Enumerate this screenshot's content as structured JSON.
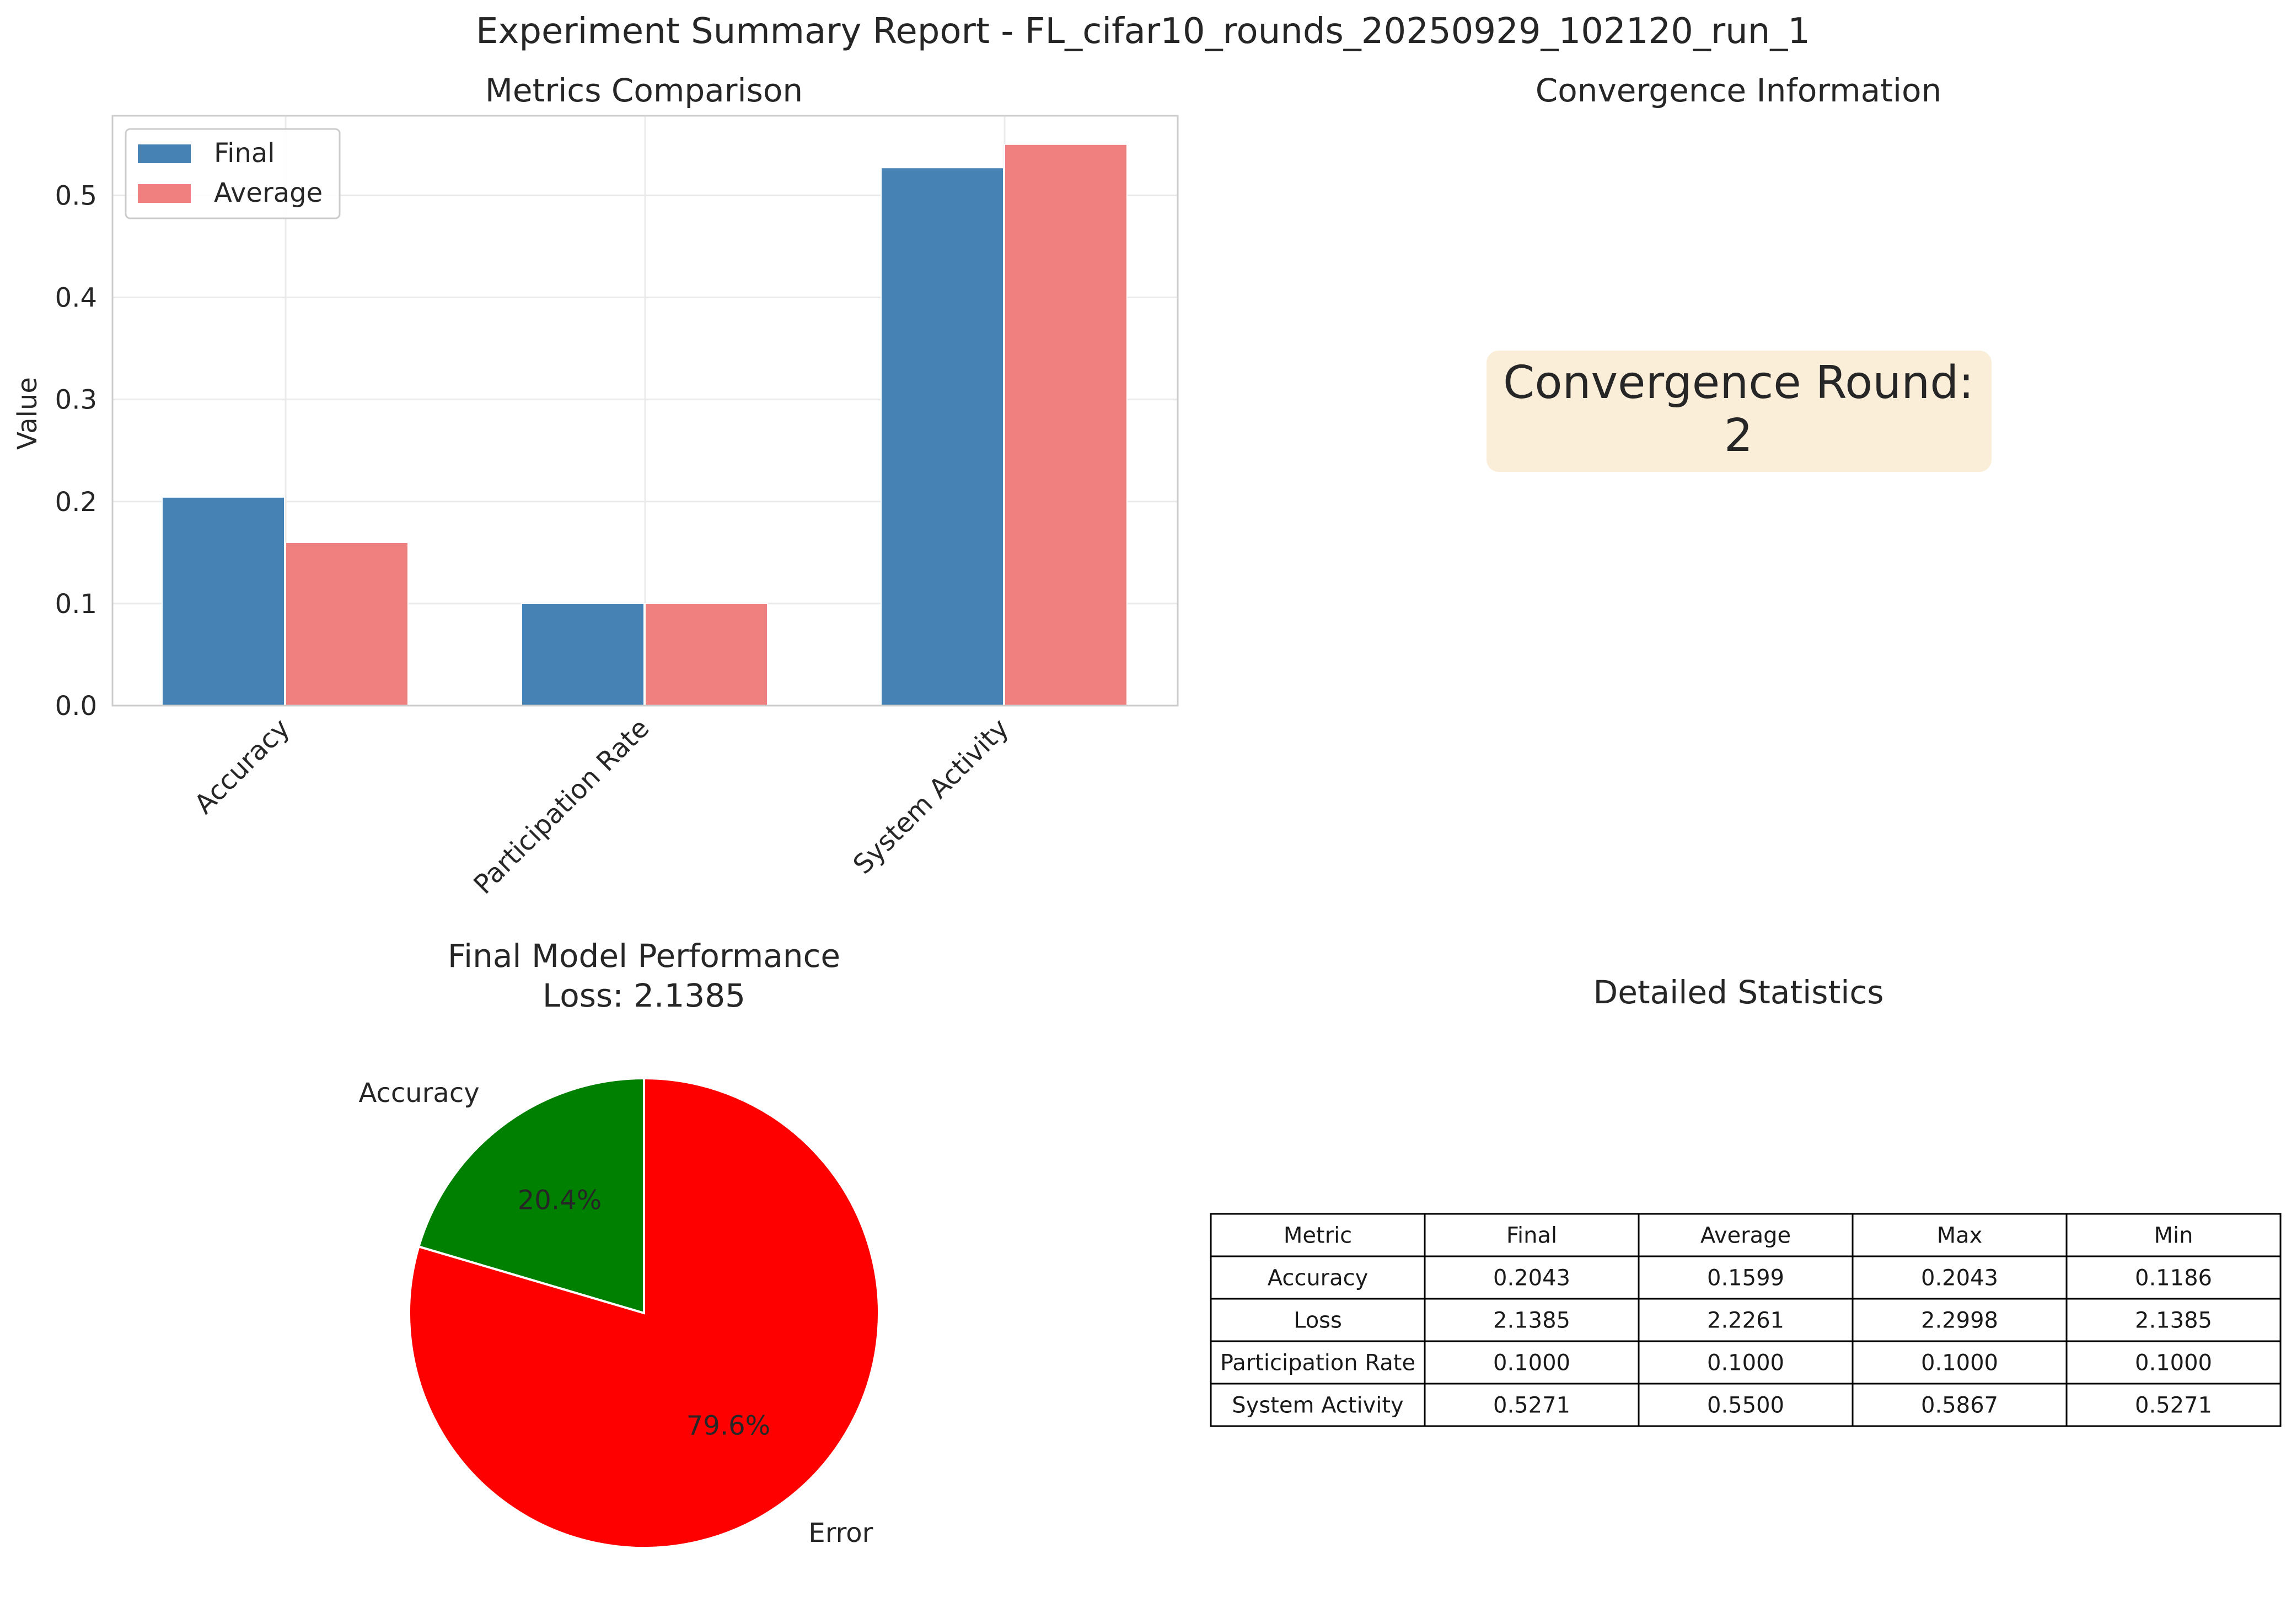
{
  "page_title": "Experiment Summary Report - FL_cifar10_rounds_20250929_102120_run_1",
  "chart_data": [
    {
      "type": "bar",
      "title": "Metrics Comparison",
      "xlabel": "",
      "ylabel": "Value",
      "categories": [
        "Accuracy",
        "Participation Rate",
        "System Activity"
      ],
      "series": [
        {
          "name": "Final",
          "values": [
            0.2043,
            0.1,
            0.5271
          ],
          "color": "#4682b4"
        },
        {
          "name": "Average",
          "values": [
            0.1599,
            0.1,
            0.55
          ],
          "color": "#f08080"
        }
      ],
      "ylim": [
        0,
        0.578
      ],
      "yticks": [
        0.0,
        0.1,
        0.2,
        0.3,
        0.4,
        0.5
      ],
      "ytick_labels": [
        "0.0",
        "0.1",
        "0.2",
        "0.3",
        "0.4",
        "0.5"
      ],
      "grid": true,
      "legend_position": "top-left"
    },
    {
      "type": "pie",
      "title": "Final Model Performance",
      "subtitle": "Loss: 2.1385",
      "labels": [
        "Accuracy",
        "Error"
      ],
      "values": [
        0.2043,
        0.7957
      ],
      "pct_labels": [
        "20.4%",
        "79.6%"
      ],
      "colors": [
        "#008000",
        "#ff0000"
      ],
      "start_angle_deg": 90
    },
    {
      "type": "table",
      "title": "Detailed Statistics",
      "columns": [
        "Metric",
        "Final",
        "Average",
        "Max",
        "Min"
      ],
      "rows": [
        [
          "Accuracy",
          "0.2043",
          "0.1599",
          "0.2043",
          "0.1186"
        ],
        [
          "Loss",
          "2.1385",
          "2.2261",
          "2.2998",
          "2.1385"
        ],
        [
          "Participation Rate",
          "0.1000",
          "0.1000",
          "0.1000",
          "0.1000"
        ],
        [
          "System Activity",
          "0.5271",
          "0.5500",
          "0.5867",
          "0.5271"
        ]
      ]
    }
  ],
  "convergence": {
    "title": "Convergence Information",
    "line1": "Convergence Round:",
    "line2": "2",
    "box_color": "#f5deb3"
  }
}
